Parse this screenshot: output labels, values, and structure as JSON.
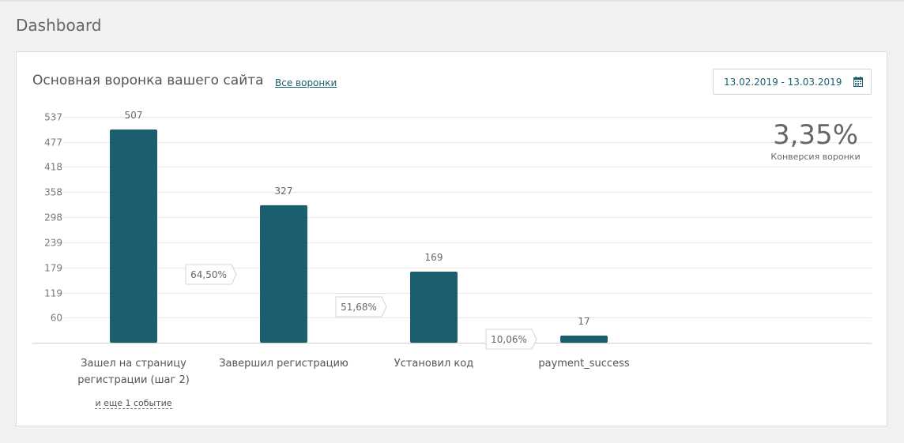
{
  "page": {
    "title": "Dashboard"
  },
  "panel": {
    "title": "Основная воронка вашего сайта",
    "all_funnels_link": "Все воронки",
    "date_range": "13.02.2019 - 13.03.2019",
    "conversion": {
      "value": "3,35%",
      "label": "Конверсия воронки"
    },
    "more_events_link": "и еще 1 событие"
  },
  "colors": {
    "bar": "#1b5f6e",
    "grid": "#e6e6e6",
    "axis": "#cfcfcf"
  },
  "chart_data": {
    "type": "bar",
    "categories": [
      "Зашел на страницу регистрации (шаг 2)",
      "Завершил регистрацию",
      "Установил код",
      "payment_success"
    ],
    "category_lines": [
      [
        "Зашел на страницу",
        "регистрации (шаг 2)"
      ],
      [
        "Завершил регистрацию"
      ],
      [
        "Установил код"
      ],
      [
        "payment_success"
      ]
    ],
    "values": [
      507,
      327,
      169,
      17
    ],
    "value_labels": [
      "507",
      "327",
      "169",
      "17"
    ],
    "step_conversions": [
      "64,50%",
      "51,68%",
      "10,06%"
    ],
    "y_ticks": [
      537,
      477,
      418,
      358,
      298,
      239,
      179,
      119,
      60
    ],
    "ylim": [
      0,
      537
    ],
    "grid": true
  }
}
